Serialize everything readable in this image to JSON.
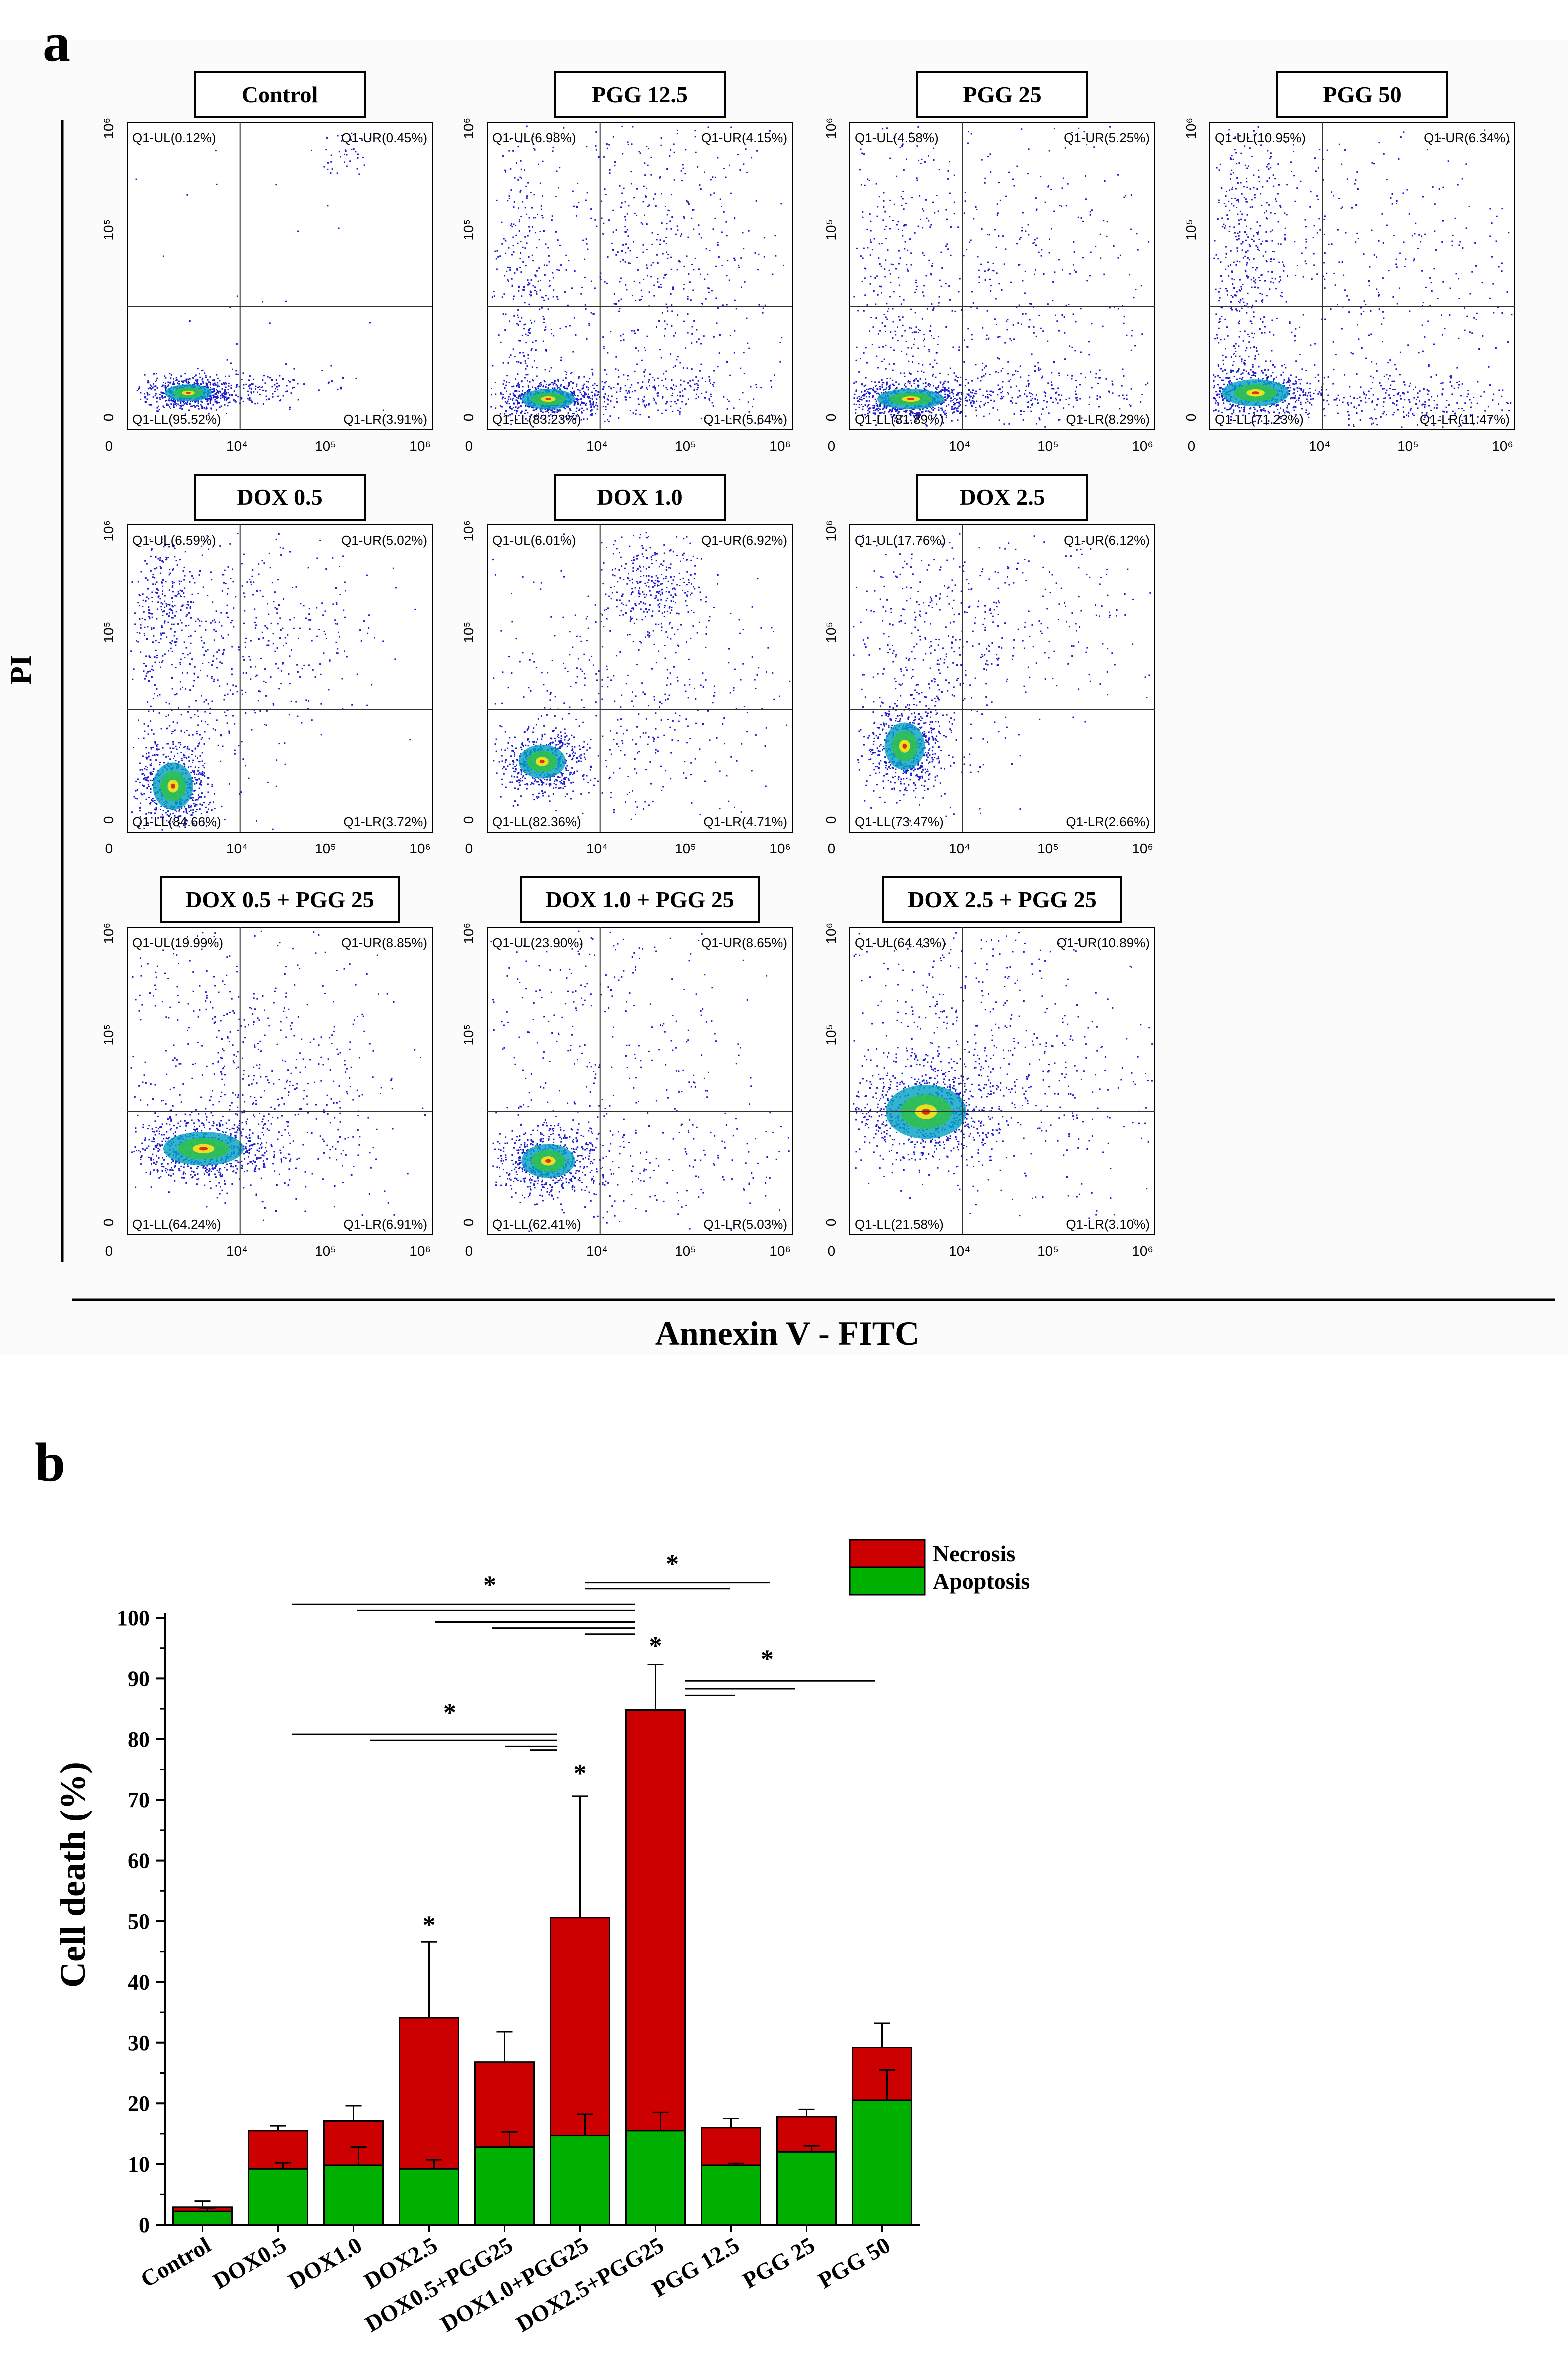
{
  "panel_a": {
    "letter": "a",
    "y_axis_label": "PI",
    "x_axis_label": "Annexin V - FITC",
    "x_ticks": [
      "0",
      "10⁴",
      "10⁵",
      "10⁶"
    ],
    "y_ticks": [
      "0",
      "10⁵",
      "10⁶"
    ],
    "plots": [
      {
        "title": "Control",
        "UL": "Q1-UL(0.12%)",
        "UR": "Q1-UR(0.45%)",
        "LL": "Q1-LL(95.52%)",
        "LR": "Q1-LR(3.91%)"
      },
      {
        "title": "PGG 12.5",
        "UL": "Q1-UL(6.98%)",
        "UR": "Q1-UR(4.15%)",
        "LL": "Q1-LL(83.23%)",
        "LR": "Q1-LR(5.64%)"
      },
      {
        "title": "PGG 25",
        "UL": "Q1-UL(4.58%)",
        "UR": "Q1-UR(5.25%)",
        "LL": "Q1-LL(81.89%)",
        "LR": "Q1-LR(8.29%)"
      },
      {
        "title": "PGG 50",
        "UL": "Q1-UL(10.95%)",
        "UR": "Q1-UR(6.34%)",
        "LL": "Q1-LL(71.23%)",
        "LR": "Q1-LR(11.47%)"
      },
      {
        "title": "DOX 0.5",
        "UL": "Q1-UL(6.59%)",
        "UR": "Q1-UR(5.02%)",
        "LL": "Q1-LL(84.66%)",
        "LR": "Q1-LR(3.72%)"
      },
      {
        "title": "DOX 1.0",
        "UL": "Q1-UL(6.01%)",
        "UR": "Q1-UR(6.92%)",
        "LL": "Q1-LL(82.36%)",
        "LR": "Q1-LR(4.71%)"
      },
      {
        "title": "DOX 2.5",
        "UL": "Q1-UL(17.76%)",
        "UR": "Q1-UR(6.12%)",
        "LL": "Q1-LL(73.47%)",
        "LR": "Q1-LR(2.66%)"
      },
      {
        "title": "DOX 0.5 + PGG 25",
        "UL": "Q1-UL(19.99%)",
        "UR": "Q1-UR(8.85%)",
        "LL": "Q1-LL(64.24%)",
        "LR": "Q1-LR(6.91%)"
      },
      {
        "title": "DOX 1.0 + PGG 25",
        "UL": "Q1-UL(23.90%)",
        "UR": "Q1-UR(8.65%)",
        "LL": "Q1-LL(62.41%)",
        "LR": "Q1-LR(5.03%)"
      },
      {
        "title": "DOX 2.5 + PGG 25",
        "UL": "Q1-UL(64.43%)",
        "UR": "Q1-UR(10.89%)",
        "LL": "Q1-LL(21.58%)",
        "LR": "Q1-LR(3.10%)"
      }
    ]
  },
  "panel_b": {
    "letter": "b"
  },
  "colors": {
    "necrosis": "#cc0000",
    "apoptosis": "#00b000",
    "scatter": "#1a1acc"
  },
  "chart_data": {
    "type": "bar",
    "stacked": true,
    "ylabel": "Cell death (%)",
    "xlabel": "",
    "ylim": [
      0,
      100
    ],
    "y_ticks": [
      0,
      10,
      20,
      30,
      40,
      50,
      60,
      70,
      80,
      90,
      100
    ],
    "categories": [
      "Control",
      "DOX0.5",
      "DOX1.0",
      "DOX2.5",
      "DOX0.5+PGG25",
      "DOX1.0+PGG25",
      "DOX2.5+PGG25",
      "PGG 12.5",
      "PGG 25",
      "PGG 50"
    ],
    "legend": [
      "Necrosis",
      "Apoptosis"
    ],
    "legend_position": "top-right",
    "series": [
      {
        "name": "Apoptosis",
        "values": [
          2.2,
          9.2,
          9.8,
          9.2,
          12.8,
          14.7,
          15.5,
          9.8,
          12.0,
          20.5
        ],
        "error": [
          0.5,
          1.0,
          3.0,
          1.5,
          2.5,
          3.5,
          3.0,
          0.3,
          1.0,
          5.0
        ]
      },
      {
        "name": "Necrosis",
        "values": [
          0.7,
          6.3,
          7.3,
          24.9,
          14.0,
          35.9,
          69.3,
          6.2,
          5.8,
          8.7
        ],
        "total_error": [
          1.0,
          0.8,
          2.5,
          12.5,
          5.0,
          20.0,
          7.5,
          1.5,
          1.2,
          4.0
        ]
      }
    ],
    "significance_marks": [
      {
        "label": "*",
        "target": "DOX2.5"
      },
      {
        "label": "*",
        "target": "DOX1.0+PGG25"
      },
      {
        "label": "*",
        "target": "DOX2.5+PGG25"
      },
      {
        "label": "*",
        "comparison": "DOX0.5, DOX1.0, DOX2.5, DOX0.5+PGG25, DOX1.0+PGG25 vs DOX2.5+PGG25"
      },
      {
        "label": "*",
        "comparison": "DOX2.5+PGG25 vs PGG 12.5, PGG 25, PGG 50"
      },
      {
        "label": "*",
        "comparison": "DOX0.5, DOX1.0, DOX2.5 vs DOX0.5+PGG25"
      },
      {
        "label": "*",
        "comparison": "DOX2.5+PGG25 vs PGG 12.5, PGG 25, PGG 50"
      }
    ]
  }
}
